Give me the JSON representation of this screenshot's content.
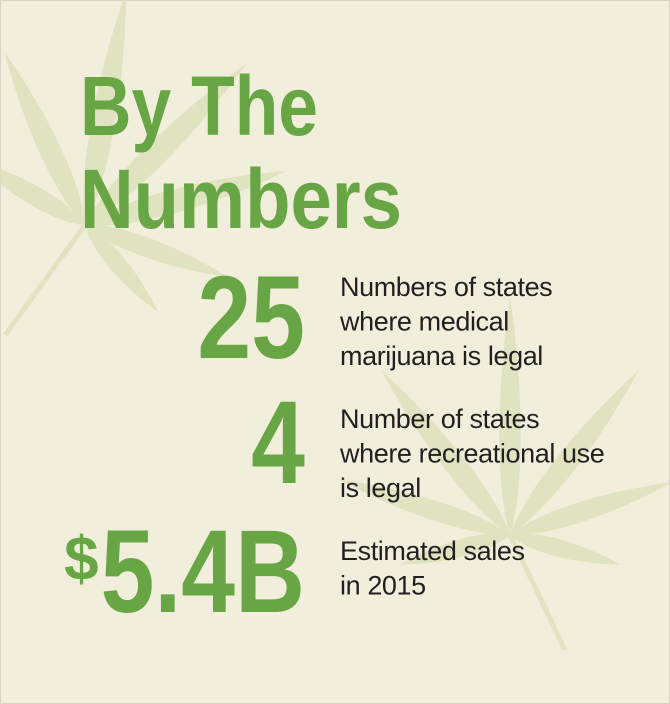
{
  "header": {
    "title_lines": [
      "By The",
      "Numbers"
    ]
  },
  "stats": [
    {
      "figure": "25",
      "lines": [
        "Numbers of states",
        "where medical",
        "marijuana is legal"
      ]
    },
    {
      "figure": "4",
      "lines": [
        "Number of states",
        "where recreational use",
        "is legal"
      ]
    },
    {
      "prefix": "$",
      "figure": "5.4B",
      "lines": [
        "Estimated sales",
        "in 2015"
      ]
    }
  ]
}
